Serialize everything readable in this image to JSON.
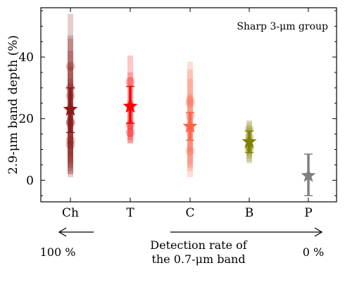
{
  "chart_data": {
    "type": "scatter",
    "annotation": "Sharp 3-μm group",
    "ylabel": "2.9-μm band depth (%)",
    "categories": [
      "Ch",
      "T",
      "C",
      "B",
      "P"
    ],
    "yticks": [
      0,
      20,
      40
    ],
    "ytick_labels": [
      "0",
      "20",
      "40"
    ],
    "ylim": [
      -7,
      56
    ],
    "grid": false,
    "groups": [
      {
        "category": "Ch",
        "color": "#8b1a1a",
        "mean": 23,
        "err_low": 15.5,
        "err_high": 30,
        "points": [
          {
            "y": 37,
            "low": 1,
            "high": 54
          },
          {
            "y": 30,
            "low": 5,
            "high": 47
          },
          {
            "y": 27.5,
            "low": 8,
            "high": 46
          },
          {
            "y": 23,
            "low": 4,
            "high": 42
          },
          {
            "y": 19,
            "low": 3,
            "high": 37
          },
          {
            "y": 18.5,
            "low": 6,
            "high": 33
          },
          {
            "y": 13,
            "low": 2,
            "high": 28
          },
          {
            "y": 11.5,
            "low": 2,
            "high": 25
          }
        ]
      },
      {
        "category": "T",
        "color": "#ff0000",
        "mean": 24,
        "err_low": 18.5,
        "err_high": 30.5,
        "points": [
          {
            "y": 32,
            "low": 22,
            "high": 40.5
          },
          {
            "y": 24,
            "low": 13,
            "high": 35
          },
          {
            "y": 18,
            "low": 12,
            "high": 26
          },
          {
            "y": 15.5,
            "low": 12,
            "high": 24
          }
        ]
      },
      {
        "category": "C",
        "color": "#ff6347",
        "mean": 17.5,
        "err_low": 13,
        "err_high": 22,
        "points": [
          {
            "y": 26,
            "low": 9,
            "high": 38.5
          },
          {
            "y": 25,
            "low": 5,
            "high": 36
          },
          {
            "y": 21,
            "low": 4,
            "high": 33
          },
          {
            "y": 17,
            "low": 3,
            "high": 28
          },
          {
            "y": 9.5,
            "low": 1,
            "high": 20
          }
        ]
      },
      {
        "category": "B",
        "color": "#808000",
        "mean": 12.5,
        "err_low": 9,
        "err_high": 16,
        "points": [
          {
            "y": 16.5,
            "low": 8,
            "high": 19.5
          },
          {
            "y": 14,
            "low": 7,
            "high": 19
          },
          {
            "y": 11,
            "low": 5.5,
            "high": 17
          },
          {
            "y": 10,
            "low": 6,
            "high": 14
          }
        ]
      },
      {
        "category": "P",
        "color": "#808080",
        "mean": 1.5,
        "err_low": -5,
        "err_high": 8.5,
        "points": []
      }
    ]
  },
  "footer": {
    "left_pct": "100 %",
    "right_pct": "0 %",
    "caption_line1": "Detection rate of",
    "caption_line2": "the 0.7-μm band"
  }
}
